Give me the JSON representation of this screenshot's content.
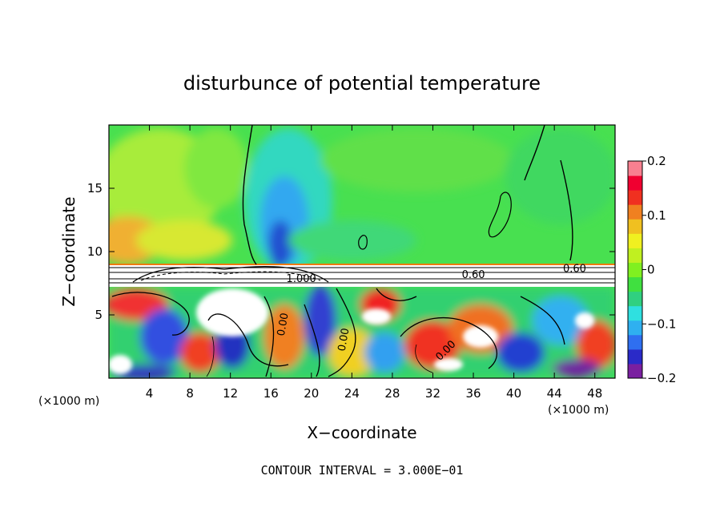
{
  "chart_data": {
    "type": "heatmap",
    "title": "disturbunce of potential temperature",
    "xlabel": "X−coordinate",
    "ylabel": "Z−coordinate",
    "x_unit_left": "(×1000 m)",
    "x_unit_right": "(×1000 m)",
    "footer": "CONTOUR INTERVAL = 3.000E−01",
    "xlim": [
      0,
      50
    ],
    "ylim": [
      0,
      20
    ],
    "x_ticks": [
      4,
      8,
      12,
      16,
      20,
      24,
      28,
      32,
      36,
      40,
      44,
      48
    ],
    "y_ticks": [
      5,
      10,
      15
    ],
    "colorbar": {
      "range": [
        -0.2,
        0.2
      ],
      "tick_values": [
        0.2,
        0.1,
        0,
        -0.1,
        -0.2
      ],
      "tick_labels": [
        "0.2",
        "0.1",
        "0",
        "−0.1",
        "−0.2"
      ],
      "colors": [
        "#7a1fa0",
        "#2a2ac8",
        "#2f6ff0",
        "#2fb0f0",
        "#2fe0e0",
        "#30d080",
        "#40e040",
        "#80f020",
        "#c0f020",
        "#f0f020",
        "#f0c020",
        "#f08020",
        "#f03020",
        "#f00030",
        "#f88090"
      ]
    },
    "contour_labels": [
      {
        "text": "0.60",
        "x": 36,
        "z": 7.9
      },
      {
        "text": "0.60",
        "x": 46,
        "z": 8.4
      },
      {
        "text": "1.000",
        "x": 19,
        "z": 7.6
      },
      {
        "text": "0.00",
        "x": 17.5,
        "z": 4.2
      },
      {
        "text": "0.00",
        "x": 23.5,
        "z": 3.0
      },
      {
        "text": "0.00",
        "x": 33.5,
        "z": 2.0
      }
    ]
  }
}
